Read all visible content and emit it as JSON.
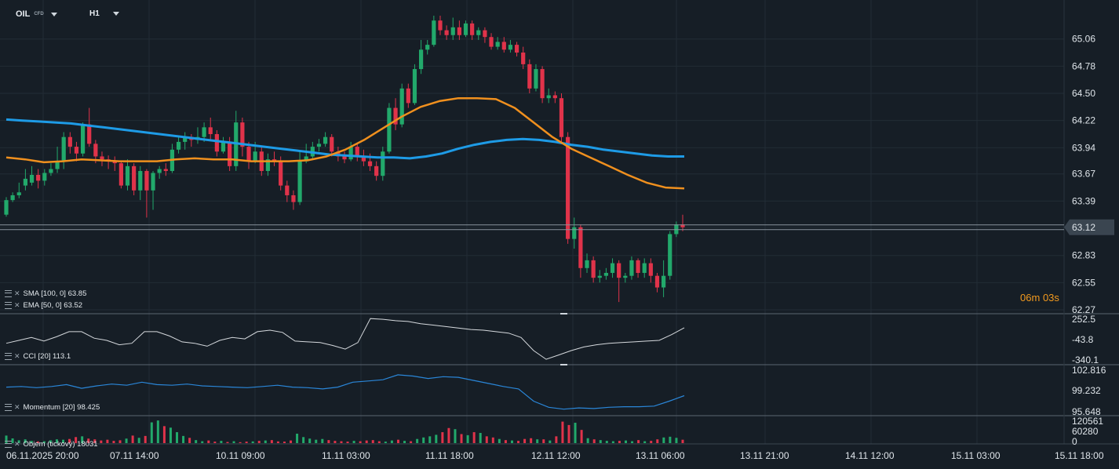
{
  "header": {
    "symbol": "OIL",
    "symbol_suffix": "CFD",
    "timeframe": "H1"
  },
  "countdown": {
    "min": "06",
    "min_unit": "m",
    "sec": "03",
    "sec_unit": "s"
  },
  "indicators": {
    "sma_label": "SMA [100,  0]  63.85",
    "ema_label": "EMA [50,  0]  63.52",
    "cci_label": "CCI [20]  113.1",
    "momentum_label": "Momentum  [20]  98.425",
    "volume_label": "Objem  (tickový)  18031"
  },
  "colors": {
    "background": "#161e26",
    "up": "#22a96b",
    "down": "#e0334a",
    "sma": "#1e9be6",
    "ema": "#f0901e",
    "cci": "#d5d9dd",
    "momentum": "#2a86d8",
    "grid": "#222c35"
  },
  "chart_data": {
    "type": "candlestick",
    "current_price": 63.12,
    "price_axis": {
      "range": [
        62.27,
        65.3
      ],
      "ticks": [
        "65.06",
        "64.78",
        "64.50",
        "64.22",
        "63.94",
        "63.67",
        "63.39",
        "63.12",
        "62.83",
        "62.55",
        "62.27"
      ]
    },
    "time_axis": {
      "ticks": [
        "06.11.2025  20:00",
        "07.11  14:00",
        "10.11  09:00",
        "11.11  03:00",
        "11.11  18:00",
        "12.11  12:00",
        "13.11  06:00",
        "13.11  21:00",
        "14.11  12:00",
        "15.11  03:00",
        "15.11  18:00"
      ]
    },
    "candles": [
      [
        63.25,
        63.4,
        63.23,
        63.43
      ],
      [
        63.4,
        63.45,
        63.38,
        63.48
      ],
      [
        63.45,
        63.48,
        63.42,
        63.58
      ],
      [
        63.55,
        63.62,
        63.5,
        63.72
      ],
      [
        63.58,
        63.66,
        63.55,
        63.75
      ],
      [
        63.66,
        63.6,
        63.52,
        63.72
      ],
      [
        63.6,
        63.68,
        63.55,
        63.72
      ],
      [
        63.68,
        63.72,
        63.65,
        63.78
      ],
      [
        63.72,
        63.8,
        63.68,
        63.95
      ],
      [
        63.8,
        64.05,
        63.72,
        64.1
      ],
      [
        64.05,
        63.95,
        63.88,
        64.1
      ],
      [
        63.95,
        63.88,
        63.8,
        64.0
      ],
      [
        63.88,
        64.18,
        63.85,
        64.2
      ],
      [
        64.18,
        63.98,
        63.95,
        64.35
      ],
      [
        63.98,
        63.85,
        63.78,
        64.02
      ],
      [
        63.85,
        63.82,
        63.75,
        63.9
      ],
      [
        63.82,
        63.8,
        63.72,
        63.86
      ],
      [
        63.8,
        63.78,
        63.7,
        63.85
      ],
      [
        63.78,
        63.55,
        63.52,
        63.8
      ],
      [
        63.55,
        63.75,
        63.5,
        63.82
      ],
      [
        63.75,
        63.5,
        63.45,
        63.78
      ],
      [
        63.5,
        63.7,
        63.4,
        63.75
      ],
      [
        63.7,
        63.5,
        63.22,
        63.72
      ],
      [
        63.5,
        63.68,
        63.3,
        63.7
      ],
      [
        63.68,
        63.72,
        63.62,
        63.75
      ],
      [
        63.72,
        63.7,
        63.65,
        63.78
      ],
      [
        63.7,
        63.92,
        63.68,
        63.98
      ],
      [
        63.92,
        64.0,
        63.88,
        64.05
      ],
      [
        64.0,
        64.05,
        63.92,
        64.1
      ],
      [
        64.05,
        64.02,
        63.95,
        64.08
      ],
      [
        64.02,
        64.05,
        63.98,
        64.15
      ],
      [
        64.05,
        64.15,
        64.0,
        64.2
      ],
      [
        64.15,
        64.08,
        64.02,
        64.25
      ],
      [
        64.08,
        63.9,
        63.85,
        64.12
      ],
      [
        63.9,
        64.0,
        63.88,
        64.05
      ],
      [
        64.0,
        63.75,
        63.7,
        64.05
      ],
      [
        63.75,
        64.2,
        63.7,
        64.32
      ],
      [
        64.2,
        63.95,
        63.85,
        64.25
      ],
      [
        63.95,
        63.8,
        63.72,
        64.0
      ],
      [
        63.8,
        63.9,
        63.78,
        64.0
      ],
      [
        63.9,
        63.7,
        63.65,
        63.95
      ],
      [
        63.7,
        63.82,
        63.65,
        63.88
      ],
      [
        63.82,
        63.8,
        63.75,
        63.9
      ],
      [
        63.8,
        63.55,
        63.5,
        63.85
      ],
      [
        63.55,
        63.45,
        63.38,
        63.6
      ],
      [
        63.45,
        63.38,
        63.3,
        63.5
      ],
      [
        63.38,
        63.8,
        63.35,
        63.9
      ],
      [
        63.8,
        63.85,
        63.78,
        63.98
      ],
      [
        63.85,
        63.95,
        63.82,
        64.0
      ],
      [
        63.95,
        63.98,
        63.9,
        64.03
      ],
      [
        63.98,
        64.05,
        63.95,
        64.1
      ],
      [
        64.05,
        63.9,
        63.85,
        64.08
      ],
      [
        63.9,
        63.85,
        63.8,
        63.95
      ],
      [
        63.85,
        63.82,
        63.78,
        63.9
      ],
      [
        63.82,
        63.95,
        63.8,
        64.0
      ],
      [
        63.95,
        63.85,
        63.8,
        63.98
      ],
      [
        63.85,
        63.8,
        63.75,
        63.92
      ],
      [
        63.8,
        63.75,
        63.7,
        63.88
      ],
      [
        63.75,
        63.65,
        63.6,
        63.8
      ],
      [
        63.65,
        63.9,
        63.6,
        63.95
      ],
      [
        63.9,
        64.35,
        63.88,
        64.4
      ],
      [
        64.35,
        64.18,
        64.12,
        64.45
      ],
      [
        64.18,
        64.55,
        64.15,
        64.6
      ],
      [
        64.55,
        64.4,
        64.35,
        64.6
      ],
      [
        64.4,
        64.75,
        64.38,
        64.8
      ],
      [
        64.75,
        64.95,
        64.7,
        65.05
      ],
      [
        64.95,
        65.0,
        64.9,
        65.05
      ],
      [
        65.0,
        65.25,
        64.98,
        65.3
      ],
      [
        65.25,
        65.15,
        65.1,
        65.3
      ],
      [
        65.15,
        65.1,
        65.05,
        65.2
      ],
      [
        65.1,
        65.18,
        65.05,
        65.28
      ],
      [
        65.18,
        65.1,
        65.05,
        65.25
      ],
      [
        65.1,
        65.22,
        65.08,
        65.25
      ],
      [
        65.22,
        65.1,
        65.05,
        65.25
      ],
      [
        65.1,
        65.15,
        65.05,
        65.18
      ],
      [
        65.15,
        65.08,
        65.02,
        65.18
      ],
      [
        65.08,
        64.98,
        64.95,
        65.12
      ],
      [
        64.98,
        65.03,
        64.95,
        65.08
      ],
      [
        65.03,
        64.95,
        64.92,
        65.08
      ],
      [
        64.95,
        65.0,
        64.92,
        65.05
      ],
      [
        65.0,
        64.92,
        64.88,
        65.03
      ],
      [
        64.92,
        64.8,
        64.75,
        64.98
      ],
      [
        64.8,
        64.55,
        64.5,
        64.85
      ],
      [
        64.55,
        64.75,
        64.52,
        64.8
      ],
      [
        64.75,
        64.45,
        64.4,
        64.78
      ],
      [
        64.45,
        64.48,
        64.4,
        64.55
      ],
      [
        64.48,
        64.45,
        64.4,
        64.52
      ],
      [
        64.45,
        64.05,
        64.0,
        64.5
      ],
      [
        64.05,
        63.0,
        62.95,
        64.1
      ],
      [
        63.0,
        63.12,
        62.9,
        63.22
      ],
      [
        63.12,
        62.7,
        62.6,
        63.15
      ],
      [
        62.7,
        62.78,
        62.65,
        62.85
      ],
      [
        62.78,
        62.6,
        62.55,
        62.82
      ],
      [
        62.6,
        62.62,
        62.55,
        62.68
      ],
      [
        62.62,
        62.65,
        62.58,
        62.7
      ],
      [
        62.65,
        62.75,
        62.6,
        62.8
      ],
      [
        62.75,
        62.6,
        62.35,
        62.78
      ],
      [
        62.6,
        62.62,
        62.55,
        62.65
      ],
      [
        62.62,
        62.78,
        62.58,
        62.82
      ],
      [
        62.78,
        62.65,
        62.6,
        62.8
      ],
      [
        62.65,
        62.75,
        62.6,
        62.8
      ],
      [
        62.75,
        62.62,
        62.55,
        62.8
      ],
      [
        62.62,
        62.5,
        62.45,
        62.65
      ],
      [
        62.5,
        62.62,
        62.4,
        62.78
      ],
      [
        62.62,
        63.05,
        62.58,
        63.08
      ],
      [
        63.05,
        63.15,
        63.02,
        63.18
      ],
      [
        63.15,
        63.12,
        63.08,
        63.25
      ]
    ],
    "sma100": [
      64.23,
      64.22,
      64.21,
      64.2,
      64.19,
      64.17,
      64.15,
      64.13,
      64.11,
      64.09,
      64.07,
      64.05,
      64.03,
      64.01,
      63.99,
      63.97,
      63.95,
      63.93,
      63.91,
      63.89,
      63.87,
      63.86,
      63.85,
      63.84,
      63.84,
      63.83,
      63.85,
      63.88,
      63.93,
      63.97,
      64.0,
      64.02,
      64.03,
      64.02,
      64.0,
      63.97,
      63.95,
      63.92,
      63.9,
      63.88,
      63.86,
      63.85,
      63.85
    ],
    "ema50": [
      63.84,
      63.82,
      63.79,
      63.8,
      63.82,
      63.81,
      63.8,
      63.8,
      63.8,
      63.82,
      63.83,
      63.82,
      63.82,
      63.8,
      63.8,
      63.8,
      63.81,
      63.85,
      63.92,
      64.02,
      64.14,
      64.26,
      64.36,
      64.42,
      64.45,
      64.45,
      64.44,
      64.35,
      64.2,
      64.05,
      63.93,
      63.84,
      63.75,
      63.66,
      63.58,
      63.53,
      63.52
    ],
    "cci": {
      "range": [
        -340.1,
        252.5
      ],
      "ticks": [
        "252.5",
        "-43.8",
        "-340.1"
      ],
      "values": [
        -100,
        -60,
        -20,
        -70,
        -10,
        60,
        60,
        -30,
        -60,
        -120,
        -100,
        60,
        60,
        0,
        -80,
        -100,
        -140,
        -60,
        -20,
        -40,
        60,
        80,
        50,
        -70,
        -80,
        -90,
        -130,
        -180,
        -90,
        240,
        230,
        210,
        200,
        170,
        150,
        130,
        110,
        90,
        80,
        60,
        40,
        -20,
        -200,
        -320,
        -260,
        -200,
        -150,
        -120,
        -100,
        -90,
        -80,
        -70,
        -60,
        20,
        113
      ]
    },
    "momentum": {
      "range": [
        95.648,
        102.816
      ],
      "ticks": [
        "102.816",
        "99.232",
        "95.648"
      ],
      "values": [
        99.8,
        99.9,
        99.7,
        99.9,
        100.2,
        99.6,
        100.0,
        100.3,
        100.1,
        100.6,
        100.2,
        100.1,
        100.3,
        100.0,
        99.9,
        99.8,
        99.7,
        99.9,
        100.1,
        99.8,
        99.7,
        99.5,
        99.8,
        100.6,
        100.8,
        101.0,
        101.8,
        101.6,
        101.2,
        101.5,
        101.4,
        100.9,
        100.4,
        99.9,
        99.5,
        97.5,
        96.5,
        96.2,
        96.4,
        96.3,
        96.5,
        96.6,
        96.6,
        96.7,
        97.5,
        98.4
      ]
    },
    "volume": {
      "range": [
        0,
        120561
      ],
      "ticks": [
        "120561",
        "60280",
        "0"
      ],
      "values": [
        40000,
        25000,
        15000,
        20000,
        12000,
        9000,
        10000,
        15000,
        20000,
        18000,
        22000,
        32000,
        36000,
        24000,
        20000,
        14000,
        18000,
        12000,
        15000,
        24000,
        40000,
        28000,
        38000,
        110000,
        120000,
        90000,
        82000,
        58000,
        38000,
        28000,
        16000,
        10000,
        14000,
        8000,
        12000,
        6000,
        10000,
        5000,
        8000,
        9000,
        12000,
        14000,
        16000,
        9000,
        8000,
        14000,
        50000,
        32000,
        24000,
        18000,
        22000,
        16000,
        12000,
        10000,
        8000,
        12000,
        10000,
        14000,
        16000,
        10000,
        8000,
        14000,
        18000,
        12000,
        10000,
        22000,
        30000,
        36000,
        44000,
        58000,
        80000,
        74000,
        48000,
        42000,
        58000,
        54000,
        36000,
        30000,
        22000,
        16000,
        14000,
        12000,
        22000,
        26000,
        20000,
        20000,
        14000,
        36000,
        114000,
        96000,
        108000,
        70000,
        26000,
        20000,
        16000,
        12000,
        10000,
        12000,
        14000,
        10000,
        16000,
        10000,
        12000,
        20000,
        30000,
        34000,
        28000,
        18031
      ]
    }
  }
}
